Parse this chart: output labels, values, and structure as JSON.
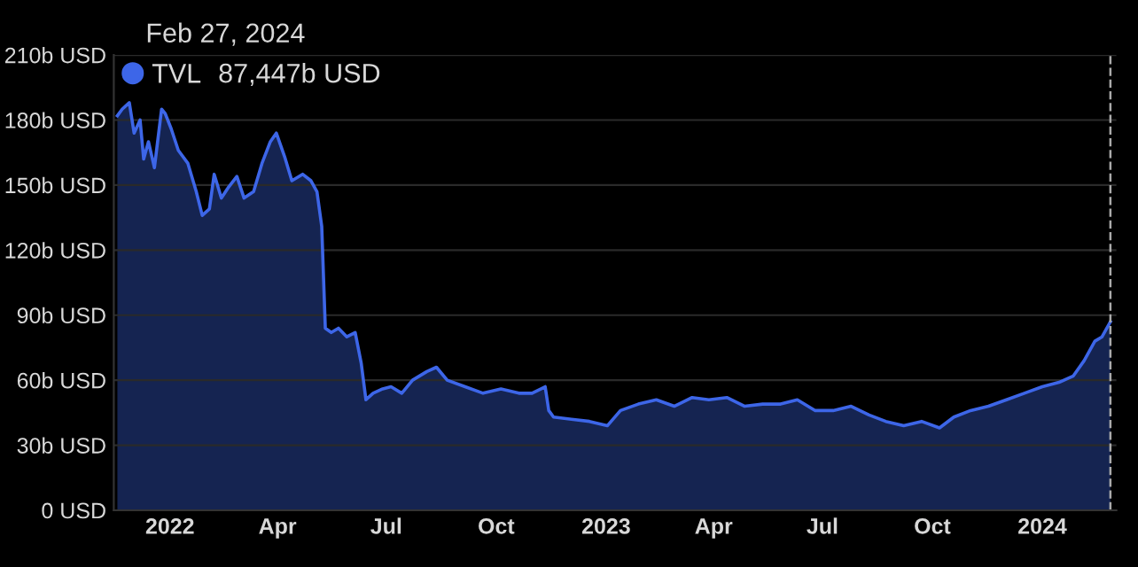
{
  "chart_data": {
    "type": "area",
    "title": "Feb 27, 2024",
    "annotations": [
      "87,447b USD"
    ],
    "x": [
      "2021-11-18",
      "2021-11-22",
      "2021-11-28",
      "2021-12-02",
      "2021-12-07",
      "2021-12-10",
      "2021-12-14",
      "2021-12-19",
      "2021-12-25",
      "2021-12-28",
      "2022-01-02",
      "2022-01-08",
      "2022-01-16",
      "2022-01-23",
      "2022-01-28",
      "2022-02-03",
      "2022-02-07",
      "2022-02-13",
      "2022-02-19",
      "2022-02-26",
      "2022-03-04",
      "2022-03-12",
      "2022-03-19",
      "2022-03-26",
      "2022-03-31",
      "2022-04-07",
      "2022-04-13",
      "2022-04-22",
      "2022-04-29",
      "2022-05-04",
      "2022-05-08",
      "2022-05-11",
      "2022-05-16",
      "2022-05-22",
      "2022-05-29",
      "2022-06-05",
      "2022-06-10",
      "2022-06-14",
      "2022-06-20",
      "2022-06-28",
      "2022-07-05",
      "2022-07-14",
      "2022-07-23",
      "2022-08-04",
      "2022-08-12",
      "2022-08-21",
      "2022-09-05",
      "2022-09-20",
      "2022-10-05",
      "2022-10-20",
      "2022-10-31",
      "2022-11-11",
      "2022-11-14",
      "2022-11-18",
      "2022-12-03",
      "2022-12-18",
      "2023-01-02",
      "2023-01-13",
      "2023-01-28",
      "2023-02-12",
      "2023-02-27",
      "2023-03-14",
      "2023-03-28",
      "2023-04-12",
      "2023-04-27",
      "2023-05-12",
      "2023-05-27",
      "2023-06-10",
      "2023-06-25",
      "2023-07-10",
      "2023-07-25",
      "2023-08-09",
      "2023-08-23",
      "2023-09-07",
      "2023-09-22",
      "2023-10-07",
      "2023-10-19",
      "2023-11-02",
      "2023-11-17",
      "2023-12-02",
      "2023-12-17",
      "2024-01-01",
      "2024-01-15",
      "2024-01-27",
      "2024-02-05",
      "2024-02-14",
      "2024-02-20",
      "2024-02-27"
    ],
    "series": [
      {
        "name": "TVL",
        "color": "#3d66e8",
        "values": [
          182,
          185,
          188,
          174,
          180,
          162,
          170,
          158,
          185,
          183,
          176,
          166,
          160,
          147,
          136,
          139,
          155,
          144,
          149,
          154,
          144,
          147,
          160,
          170,
          174,
          163,
          152,
          155,
          152,
          147,
          131,
          84,
          82,
          84,
          80,
          82,
          68,
          51,
          54,
          56,
          57,
          54,
          60,
          64,
          66,
          60,
          57,
          54,
          56,
          54,
          54,
          57,
          46,
          43,
          42,
          41,
          39,
          46,
          49,
          51,
          48,
          52,
          51,
          52,
          48,
          49,
          49,
          51,
          46,
          46,
          48,
          44,
          41,
          39,
          41,
          38,
          43,
          46,
          48,
          51,
          54,
          57,
          59,
          62,
          69,
          78,
          80,
          87
        ]
      }
    ],
    "xlim": [
      "2021-11-15",
      "2024-03-03"
    ],
    "xticks": [
      {
        "value": "2022-01-01",
        "label": "2022"
      },
      {
        "value": "2022-04-01",
        "label": "Apr"
      },
      {
        "value": "2022-07-01",
        "label": "Jul"
      },
      {
        "value": "2022-10-01",
        "label": "Oct"
      },
      {
        "value": "2023-01-01",
        "label": "2023"
      },
      {
        "value": "2023-04-01",
        "label": "Apr"
      },
      {
        "value": "2023-07-01",
        "label": "Jul"
      },
      {
        "value": "2023-10-01",
        "label": "Oct"
      },
      {
        "value": "2024-01-01",
        "label": "2024"
      }
    ],
    "ylim": [
      0,
      210
    ],
    "yticks": [
      {
        "value": 0,
        "label": "0 USD"
      },
      {
        "value": 30,
        "label": "30b USD"
      },
      {
        "value": 60,
        "label": "60b USD"
      },
      {
        "value": 90,
        "label": "90b USD"
      },
      {
        "value": 120,
        "label": "120b USD"
      },
      {
        "value": 150,
        "label": "150b USD"
      },
      {
        "value": 180,
        "label": "180b USD"
      },
      {
        "value": 210,
        "label": "210b USD"
      }
    ],
    "grid": "y",
    "legend": "top left",
    "ref_lines": [
      {
        "axis": "x",
        "value": "2024-02-27",
        "color": "#aaaaaa",
        "line_style": "dashed"
      }
    ]
  }
}
